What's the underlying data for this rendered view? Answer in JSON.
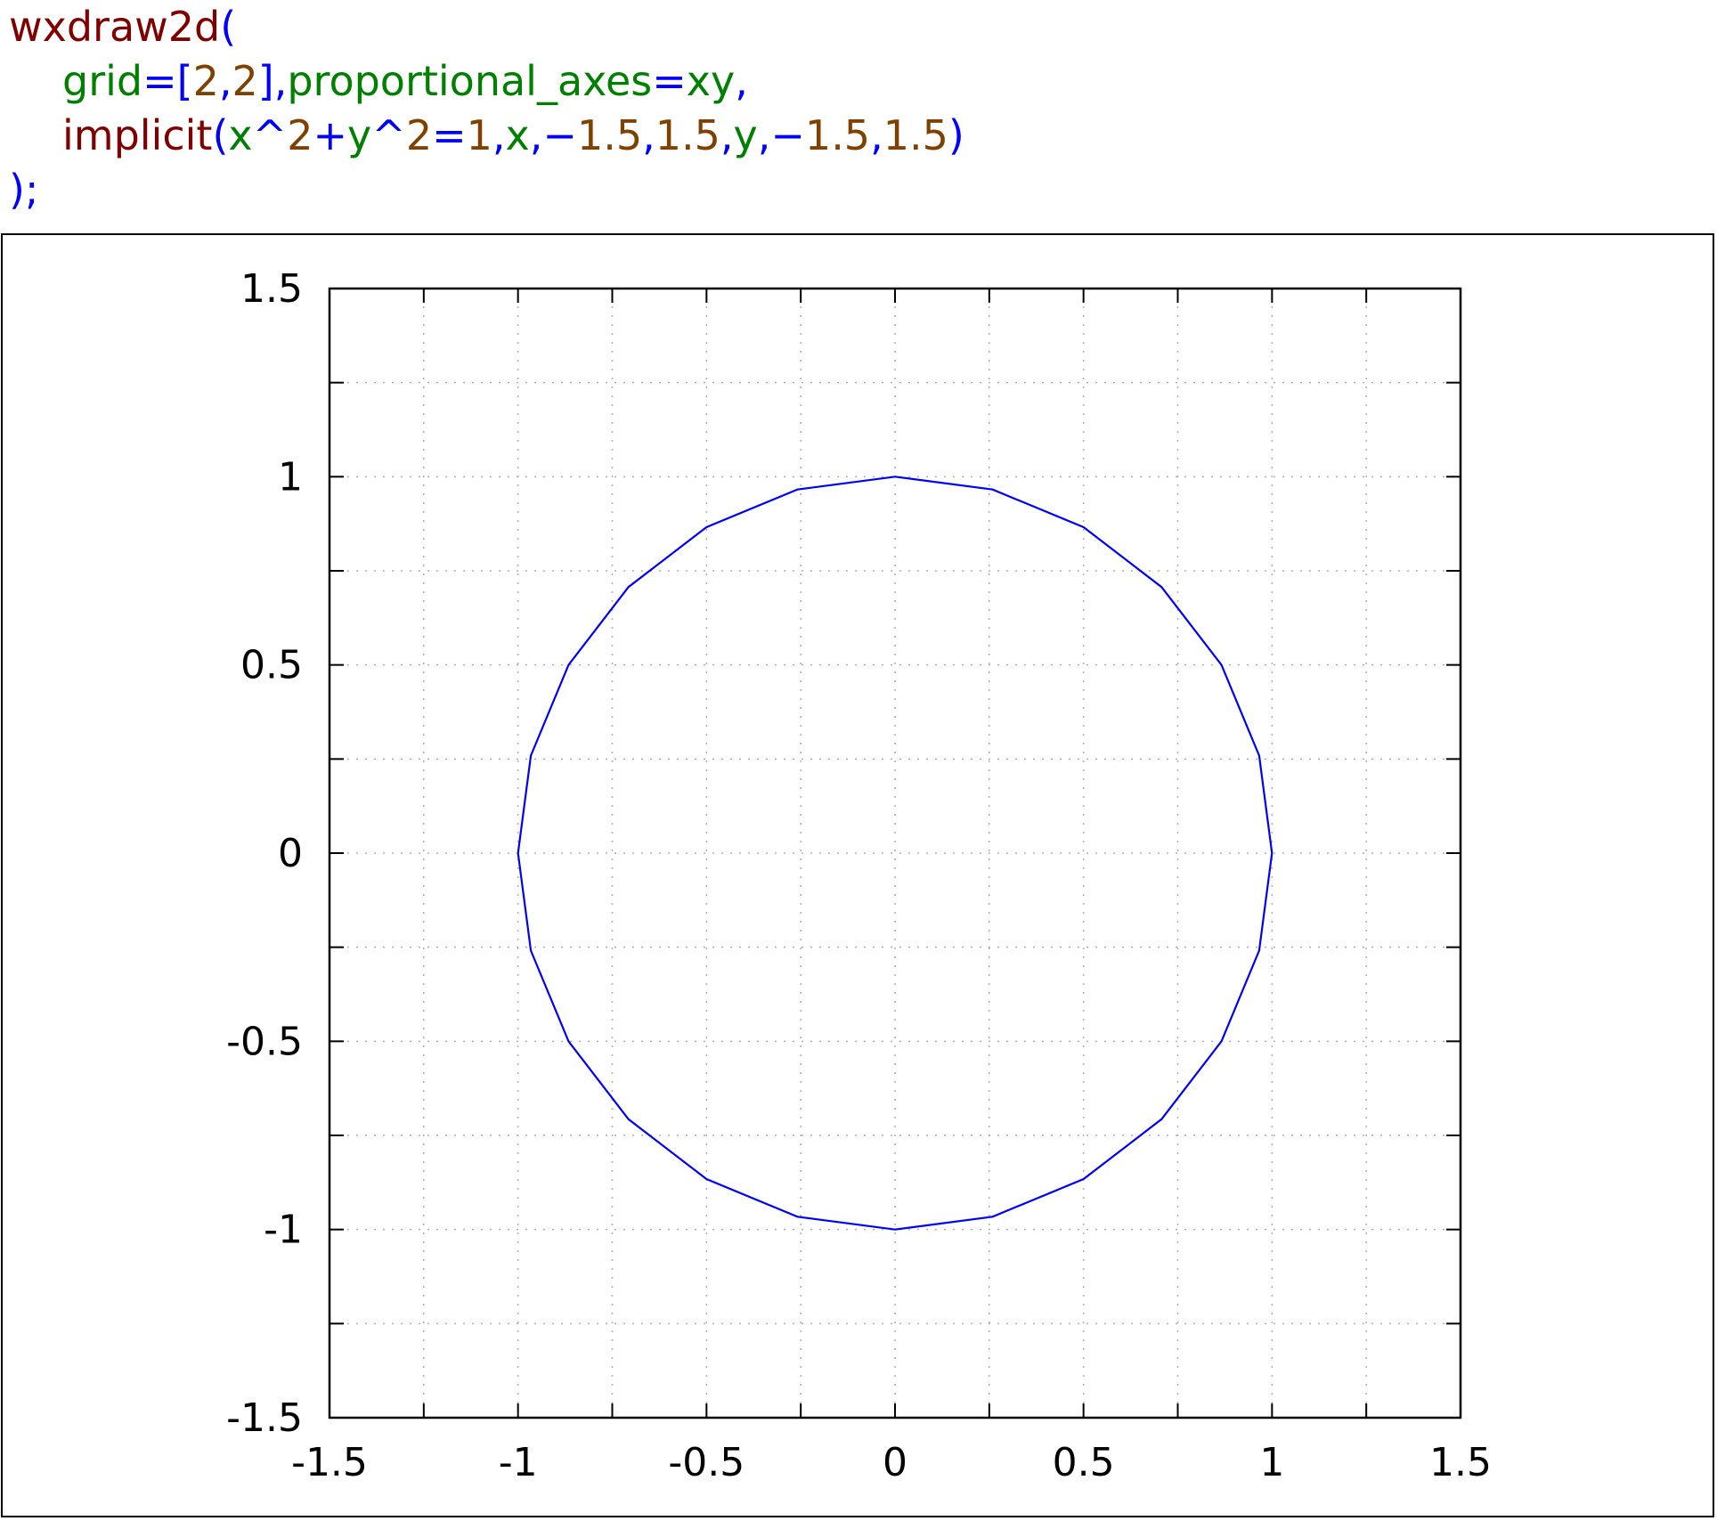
{
  "code": {
    "lines": [
      [
        {
          "text": "wxdraw2d",
          "color": "#800000"
        },
        {
          "text": "(",
          "color": "#0000ff"
        }
      ],
      [
        {
          "text": "grid",
          "color": "#008000"
        },
        {
          "text": "=",
          "color": "#0000ff"
        },
        {
          "text": "[",
          "color": "#0000ff"
        },
        {
          "text": "2",
          "color": "#804000"
        },
        {
          "text": ",",
          "color": "#0000ff"
        },
        {
          "text": "2",
          "color": "#804000"
        },
        {
          "text": "]",
          "color": "#0000ff"
        },
        {
          "text": ",",
          "color": "#0000ff"
        },
        {
          "text": "proportional_axes",
          "color": "#008000"
        },
        {
          "text": "=",
          "color": "#0000ff"
        },
        {
          "text": "xy",
          "color": "#008000"
        },
        {
          "text": ",",
          "color": "#0000ff"
        }
      ],
      [
        {
          "text": "implicit",
          "color": "#800000"
        },
        {
          "text": "(",
          "color": "#0000ff"
        },
        {
          "text": "x",
          "color": "#008000"
        },
        {
          "text": "^",
          "color": "#0000ff"
        },
        {
          "text": "2",
          "color": "#804000"
        },
        {
          "text": "+",
          "color": "#0000ff"
        },
        {
          "text": "y",
          "color": "#008000"
        },
        {
          "text": "^",
          "color": "#0000ff"
        },
        {
          "text": "2",
          "color": "#804000"
        },
        {
          "text": "=",
          "color": "#0000ff"
        },
        {
          "text": "1",
          "color": "#804000"
        },
        {
          "text": ",",
          "color": "#0000ff"
        },
        {
          "text": "x",
          "color": "#008000"
        },
        {
          "text": ",",
          "color": "#0000ff"
        },
        {
          "text": "−",
          "color": "#0000ff"
        },
        {
          "text": "1.5",
          "color": "#804000"
        },
        {
          "text": ",",
          "color": "#0000ff"
        },
        {
          "text": "1.5",
          "color": "#804000"
        },
        {
          "text": ",",
          "color": "#0000ff"
        },
        {
          "text": "y",
          "color": "#008000"
        },
        {
          "text": ",",
          "color": "#0000ff"
        },
        {
          "text": "−",
          "color": "#0000ff"
        },
        {
          "text": "1.5",
          "color": "#804000"
        },
        {
          "text": ",",
          "color": "#0000ff"
        },
        {
          "text": "1.5",
          "color": "#804000"
        },
        {
          "text": ")",
          "color": "#0000ff"
        }
      ],
      [
        {
          "text": ");",
          "color": "#0000ff"
        }
      ]
    ],
    "indented_lines": [
      1,
      2
    ]
  },
  "chart_data": {
    "type": "line",
    "title": "",
    "xlabel": "",
    "ylabel": "",
    "xlim": [
      -1.5,
      1.5
    ],
    "ylim": [
      -1.5,
      1.5
    ],
    "x_ticks": [
      -1.5,
      -1,
      -0.5,
      0,
      0.5,
      1,
      1.5
    ],
    "y_ticks": [
      -1.5,
      -1,
      -0.5,
      0,
      0.5,
      1,
      1.5
    ],
    "x_tick_labels": [
      "-1.5",
      "-1",
      "-0.5",
      "0",
      "0.5",
      "1",
      "1.5"
    ],
    "y_tick_labels": [
      "-1.5",
      "-1",
      "-0.5",
      "0",
      "0.5",
      "1",
      "1.5"
    ],
    "minor_ticks_per_interval": 2,
    "grid": true,
    "grid_style": "dotted",
    "proportional_axes": "xy",
    "series": [
      {
        "equation": "x^2+y^2=1",
        "color": "#0000ff",
        "x": [
          1,
          0.966,
          0.866,
          0.707,
          0.5,
          0.259,
          0,
          -0.259,
          -0.5,
          -0.707,
          -0.866,
          -0.966,
          -1,
          -0.966,
          -0.866,
          -0.707,
          -0.5,
          -0.259,
          0,
          0.259,
          0.5,
          0.707,
          0.866,
          0.966,
          1
        ],
        "y": [
          0,
          0.259,
          0.5,
          0.707,
          0.866,
          0.966,
          1,
          0.966,
          0.866,
          0.707,
          0.5,
          0.259,
          0,
          -0.259,
          -0.5,
          -0.707,
          -0.866,
          -0.966,
          -1,
          -0.966,
          -0.866,
          -0.707,
          -0.5,
          -0.259,
          0
        ]
      }
    ]
  }
}
